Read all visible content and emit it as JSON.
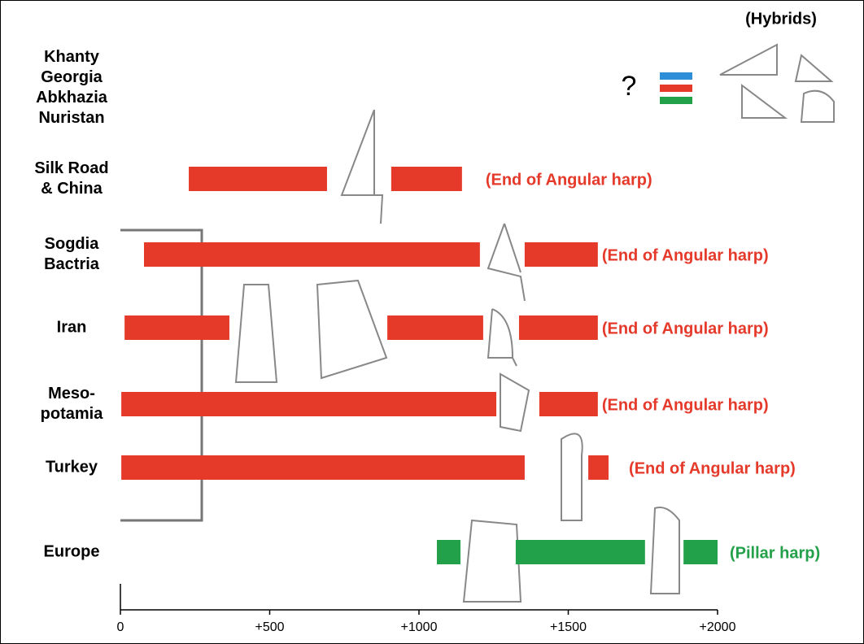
{
  "chart_data": {
    "type": "range",
    "annotations": {
      "hybrids": "(Hybrids)",
      "unknown": "?"
    },
    "xlim": [
      0,
      2000
    ],
    "xticks": [
      0,
      {
        "value": 500,
        "label": "+500"
      },
      {
        "value": 1000,
        "label": "+1000"
      },
      {
        "value": 1500,
        "label": "+1500"
      },
      {
        "value": 2000,
        "label": "+2000"
      }
    ],
    "rows": [
      {
        "label": [
          "Khanty",
          "Georgia",
          "Abkhazia",
          "Nuristan"
        ],
        "segments": []
      },
      {
        "label": [
          "Silk Road",
          "& China"
        ],
        "segments": [
          [
            229,
            692
          ],
          [
            907,
            1144
          ]
        ],
        "color": "#e5392a",
        "note": "(End of Angular harp)"
      },
      {
        "label": [
          "Sogdia",
          "Bactria"
        ],
        "segments": [
          [
            79,
            1204
          ],
          [
            1354,
            1599
          ]
        ],
        "color": "#e5392a",
        "note": "(End of Angular harp)"
      },
      {
        "label": [
          "Iran"
        ],
        "segments": [
          [
            14,
            365
          ],
          [
            894,
            1215
          ],
          [
            1335,
            1599
          ]
        ],
        "color": "#e5392a",
        "note": "(End of Angular harp)"
      },
      {
        "label": [
          "Meso-",
          "potamia"
        ],
        "segments": [
          [
            3,
            1259
          ],
          [
            1403,
            1599
          ]
        ],
        "color": "#e5392a",
        "note": "(End of Angular harp)"
      },
      {
        "label": [
          "Turkey"
        ],
        "segments": [
          [
            3,
            1354
          ],
          [
            1567,
            1635
          ]
        ],
        "color": "#e5392a",
        "note": "(End of Angular harp)"
      },
      {
        "label": [
          "Europe"
        ],
        "segments": [
          [
            1060,
            1139
          ],
          [
            1324,
            1757
          ],
          [
            1886,
            2000
          ]
        ],
        "color": "#23a04a",
        "note": "(Pillar harp)"
      }
    ]
  }
}
